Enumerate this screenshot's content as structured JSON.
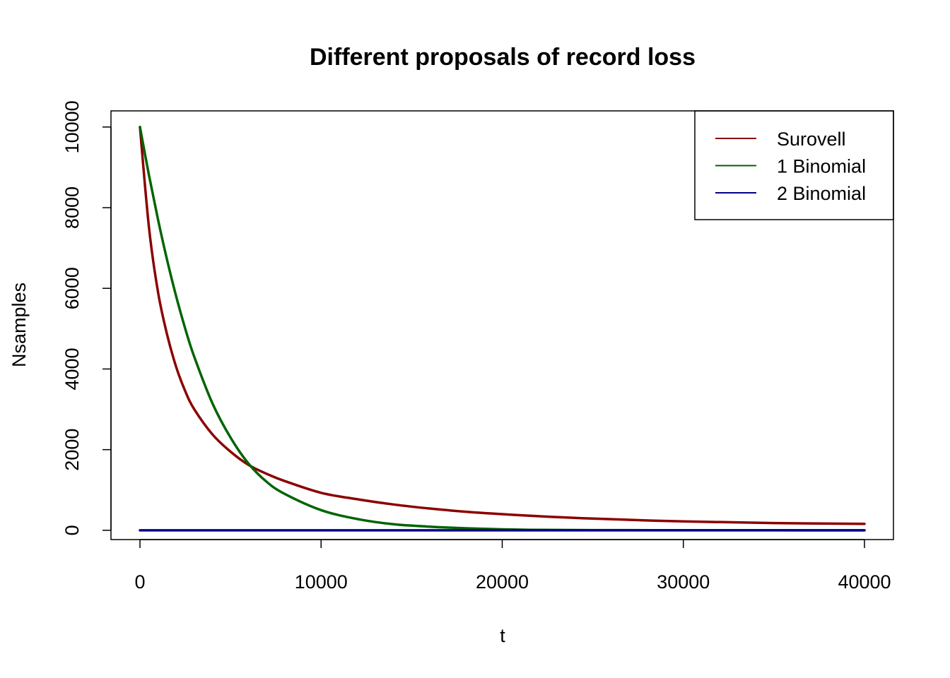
{
  "chart_data": {
    "type": "line",
    "title": "Different proposals of record loss",
    "xlabel": "t",
    "ylabel": "Nsamples",
    "xlim": [
      -1600,
      41600
    ],
    "ylim": [
      -230,
      10400
    ],
    "x_ticks": [
      0,
      10000,
      20000,
      30000,
      40000
    ],
    "y_ticks": [
      0,
      2000,
      4000,
      6000,
      8000,
      10000
    ],
    "x_tick_labels": [
      "0",
      "10000",
      "20000",
      "30000",
      "40000"
    ],
    "y_tick_labels": [
      "0",
      "2000",
      "4000",
      "6000",
      "8000",
      "10000"
    ],
    "legend_position": "top-right",
    "grid": false,
    "x": [
      0,
      500,
      1000,
      1500,
      2000,
      2500,
      3000,
      4000,
      5000,
      6000,
      7000,
      8000,
      10000,
      12000,
      14000,
      16000,
      18000,
      20000,
      22000,
      25000,
      30000,
      35000,
      40000
    ],
    "series": [
      {
        "name": "Surovell",
        "color": "#8B0000",
        "values": [
          10000,
          7500,
          5900,
          4850,
          4050,
          3450,
          3000,
          2380,
          1950,
          1620,
          1400,
          1220,
          930,
          770,
          640,
          540,
          460,
          400,
          350,
          290,
          220,
          180,
          160
        ]
      },
      {
        "name": "1 Binomial",
        "color": "#006400",
        "values": [
          10000,
          8800,
          7700,
          6700,
          5800,
          5000,
          4300,
          3150,
          2300,
          1650,
          1200,
          900,
          500,
          280,
          150,
          90,
          50,
          25,
          10,
          5,
          2,
          1,
          0
        ]
      },
      {
        "name": "2 Binomial",
        "color": "#00008B",
        "values": [
          0,
          0,
          0,
          0,
          0,
          0,
          0,
          0,
          0,
          0,
          0,
          0,
          0,
          0,
          0,
          0,
          0,
          0,
          0,
          0,
          0,
          0,
          0
        ]
      }
    ]
  }
}
